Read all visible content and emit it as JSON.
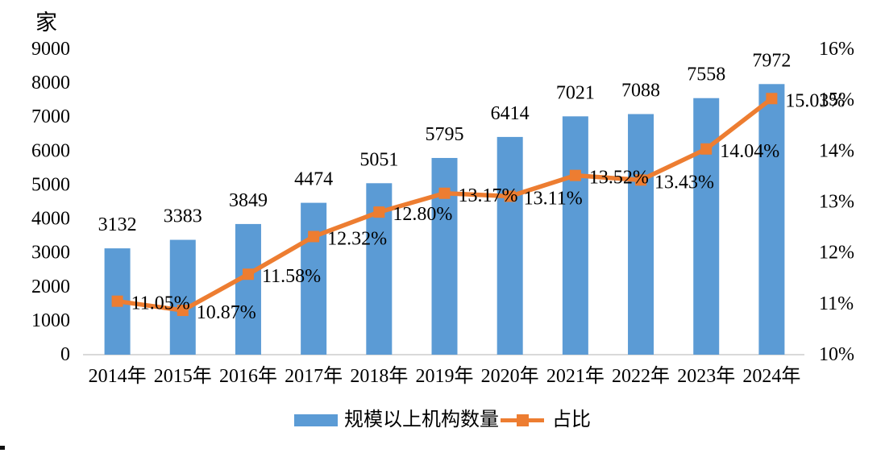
{
  "chart_data": {
    "type": "combo-bar-line",
    "title": "",
    "categories": [
      "2014年",
      "2015年",
      "2016年",
      "2017年",
      "2018年",
      "2019年",
      "2020年",
      "2021年",
      "2022年",
      "2023年",
      "2024年"
    ],
    "series": [
      {
        "name": "规模以上机构数量",
        "chart_type": "bar",
        "axis": "left",
        "color": "#5B9BD5",
        "values": [
          3132,
          3383,
          3849,
          4474,
          5051,
          5795,
          6414,
          7021,
          7088,
          7558,
          7972
        ],
        "data_labels": [
          "3132",
          "3383",
          "3849",
          "4474",
          "5051",
          "5795",
          "6414",
          "7021",
          "7088",
          "7558",
          "7972"
        ]
      },
      {
        "name": "占比",
        "chart_type": "line",
        "axis": "right",
        "color": "#ED7D31",
        "marker": "square",
        "values": [
          11.05,
          10.87,
          11.58,
          12.32,
          12.8,
          13.17,
          13.11,
          13.52,
          13.43,
          14.04,
          15.03
        ],
        "data_labels": [
          "11.05%",
          "10.87%",
          "11.58%",
          "12.32%",
          "12.80%",
          "13.17%",
          "13.11%",
          "13.52%",
          "13.43%",
          "14.04%",
          "15.03%"
        ]
      }
    ],
    "left_axis": {
      "title": "家",
      "min": 0,
      "max": 9000,
      "step": 1000,
      "tick_labels": [
        "0",
        "1000",
        "2000",
        "3000",
        "4000",
        "5000",
        "6000",
        "7000",
        "8000",
        "9000"
      ]
    },
    "right_axis": {
      "min": 10,
      "max": 16,
      "step": 1,
      "tick_labels": [
        "10%",
        "11%",
        "12%",
        "13%",
        "14%",
        "15%",
        "16%"
      ]
    },
    "legend": {
      "position": "bottom",
      "items": [
        "规模以上机构数量",
        "占比"
      ]
    },
    "grid": false,
    "axis_line_color": "#D9D9D9",
    "text_color": "#000000"
  }
}
